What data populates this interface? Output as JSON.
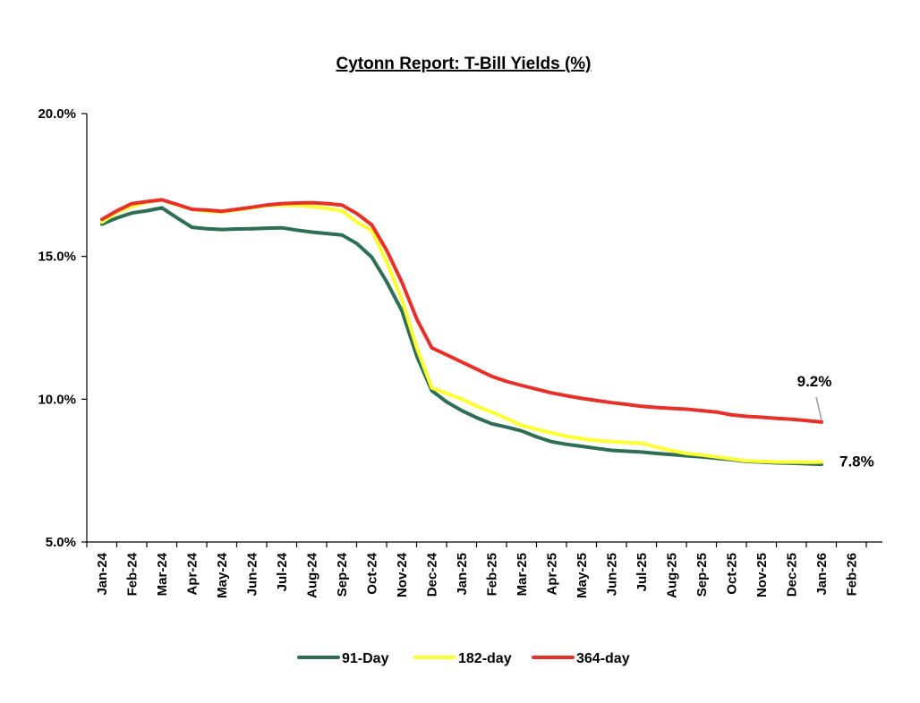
{
  "chart_data": {
    "type": "line",
    "title": "Cytonn Report: T-Bill Yields (%)",
    "xlabel": "",
    "ylabel": "",
    "ylim": [
      5,
      20
    ],
    "yticks": [
      "5.0%",
      "10.0%",
      "15.0%",
      "20.0%"
    ],
    "ytick_values": [
      5,
      10,
      15,
      20
    ],
    "categories": [
      "Jan-24",
      "Feb-24",
      "Mar-24",
      "Apr-24",
      "May-24",
      "Jun-24",
      "Jul-24",
      "Aug-24",
      "Sep-24",
      "Oct-24",
      "Nov-24",
      "Dec-24",
      "Jan-25",
      "Feb-25",
      "Mar-25",
      "Apr-25",
      "May-25",
      "Jun-25",
      "Jul-25",
      "Aug-25",
      "Sep-25",
      "Oct-25",
      "Nov-25",
      "Dec-25",
      "Jan-26",
      "Feb-26"
    ],
    "x": [
      0,
      0.5,
      1,
      1.5,
      2,
      2.5,
      3,
      3.5,
      4,
      4.5,
      5,
      5.5,
      6,
      6.5,
      7,
      7.5,
      8,
      8.5,
      9,
      9.5,
      10,
      10.5,
      11,
      11.5,
      12,
      12.5,
      13,
      13.5,
      14,
      14.5,
      15,
      15.5,
      16,
      16.5,
      17,
      17.5,
      18,
      18.5,
      19,
      19.5,
      20,
      20.5,
      21,
      21.5,
      22,
      22.5,
      23,
      23.5,
      24
    ],
    "series": [
      {
        "name": "91-Day",
        "color": "#2e6e55",
        "values": [
          16.13,
          16.35,
          16.52,
          16.6,
          16.7,
          16.35,
          16.02,
          15.97,
          15.94,
          15.96,
          15.97,
          15.99,
          16.0,
          15.92,
          15.85,
          15.8,
          15.75,
          15.45,
          14.97,
          14.1,
          13.1,
          11.5,
          10.3,
          9.9,
          9.6,
          9.35,
          9.14,
          9.02,
          8.89,
          8.68,
          8.51,
          8.42,
          8.35,
          8.28,
          8.21,
          8.18,
          8.15,
          8.1,
          8.06,
          8.02,
          7.98,
          7.93,
          7.88,
          7.82,
          7.8,
          7.77,
          7.76,
          7.74,
          7.72
        ]
      },
      {
        "name": "182-day",
        "color": "#ffff33",
        "values": [
          16.2,
          16.55,
          16.75,
          16.9,
          16.98,
          16.8,
          16.65,
          16.58,
          16.55,
          16.62,
          16.7,
          16.78,
          16.8,
          16.78,
          16.75,
          16.68,
          16.6,
          16.2,
          15.9,
          14.8,
          13.5,
          11.8,
          10.4,
          10.2,
          10.0,
          9.75,
          9.55,
          9.32,
          9.08,
          8.95,
          8.82,
          8.7,
          8.62,
          8.55,
          8.52,
          8.48,
          8.46,
          8.32,
          8.2,
          8.1,
          8.05,
          7.98,
          7.91,
          7.84,
          7.82,
          7.8,
          7.8,
          7.79,
          7.8
        ]
      },
      {
        "name": "364-day",
        "color": "#e8302a",
        "values": [
          16.3,
          16.6,
          16.85,
          16.92,
          16.98,
          16.82,
          16.65,
          16.62,
          16.58,
          16.65,
          16.72,
          16.8,
          16.85,
          16.87,
          16.88,
          16.85,
          16.8,
          16.5,
          16.1,
          15.2,
          14.1,
          12.8,
          11.8,
          11.55,
          11.3,
          11.05,
          10.8,
          10.62,
          10.48,
          10.35,
          10.22,
          10.12,
          10.03,
          9.95,
          9.88,
          9.82,
          9.75,
          9.71,
          9.68,
          9.65,
          9.6,
          9.55,
          9.45,
          9.4,
          9.37,
          9.33,
          9.3,
          9.25,
          9.2
        ]
      }
    ],
    "annotations": [
      {
        "text": "9.2%",
        "series": "364-day",
        "x_category": "Jan-26",
        "value": 9.2
      },
      {
        "text": "7.8%",
        "series": "182-day",
        "x_category": "Jan-26",
        "value": 7.8
      }
    ],
    "legend": {
      "position": "bottom-center",
      "entries": [
        "91-Day",
        "182-day",
        "364-day"
      ]
    }
  }
}
